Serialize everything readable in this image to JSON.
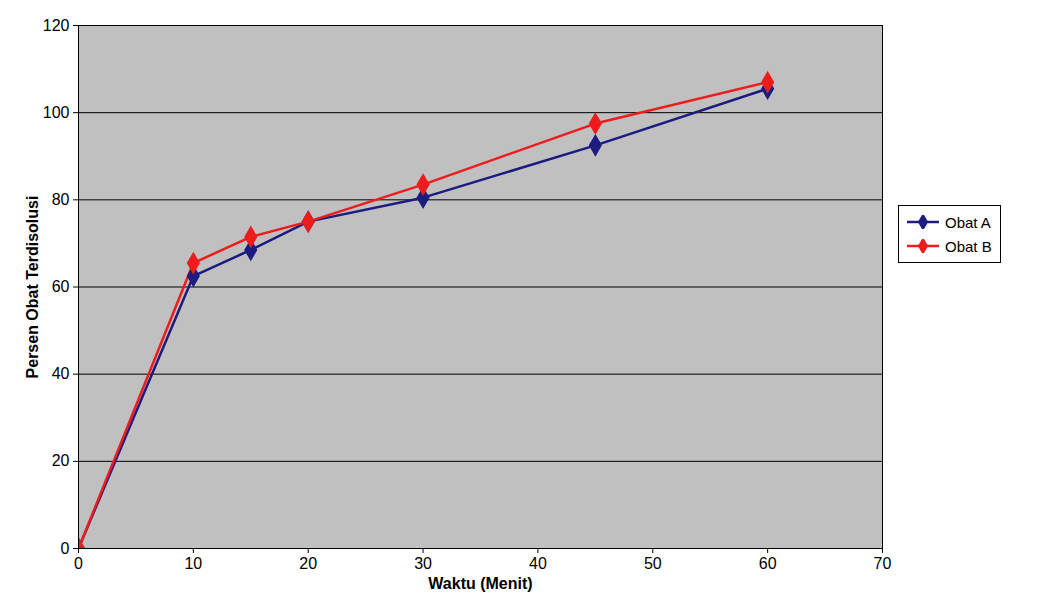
{
  "chart_data": {
    "type": "line",
    "x_label": "Waktu (Menit)",
    "y_label": "Persen Obat Terdisolusi",
    "x": [
      0,
      10,
      15,
      20,
      30,
      45,
      60
    ],
    "series": [
      {
        "name": "Obat A",
        "color": "#1c1c80",
        "marker": "diamond",
        "values": [
          0,
          62.5,
          68.5,
          75,
          80.5,
          92.5,
          105.5
        ]
      },
      {
        "name": "Obat B",
        "color": "#ee1c1c",
        "marker": "diamond",
        "values": [
          0,
          65.5,
          71.5,
          75,
          83.5,
          97.5,
          107
        ]
      }
    ],
    "xlim": [
      0,
      70
    ],
    "xticks": [
      0,
      10,
      20,
      30,
      40,
      50,
      60,
      70
    ],
    "ylim": [
      0,
      120
    ],
    "yticks": [
      0,
      20,
      40,
      60,
      80,
      100,
      120
    ],
    "grid": true,
    "legend": "right"
  }
}
